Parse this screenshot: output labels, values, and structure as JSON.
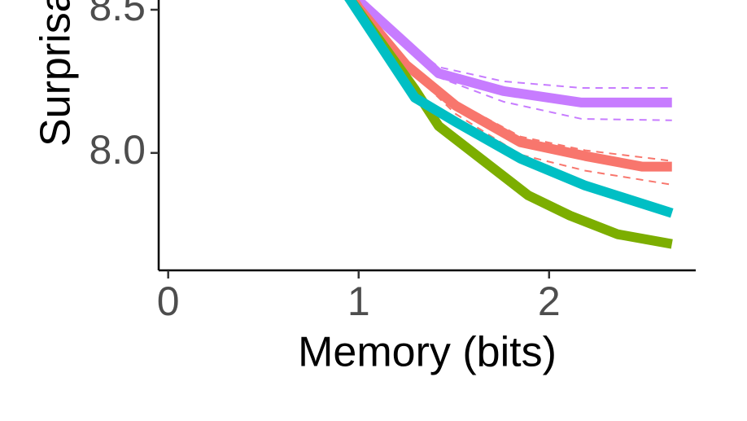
{
  "chart_data": {
    "type": "line",
    "x_label": "Memory (bits)",
    "y_label": "Surprisal",
    "xlim": [
      -0.05,
      2.77
    ],
    "xticks": [
      0,
      1,
      2
    ],
    "ylim": [
      7.59,
      8.534
    ],
    "yticks": [
      {
        "value": 8.0,
        "label": "8.0"
      },
      {
        "value": 8.5,
        "label": "8.5"
      }
    ],
    "series": [
      {
        "color": "#c77cff",
        "line_style": "solid",
        "x": [
          0.97,
          1.42,
          1.76,
          2.17,
          2.645
        ],
        "values": [
          8.55,
          8.278,
          8.216,
          8.176,
          8.176
        ]
      },
      {
        "color": "#c77cff",
        "line_style": "dashed",
        "x": [
          1.0,
          1.42,
          1.76,
          2.17,
          2.645
        ],
        "values": [
          8.52,
          8.3,
          8.25,
          8.227,
          8.227
        ]
      },
      {
        "color": "#c77cff",
        "line_style": "dashed",
        "x": [
          0.97,
          1.42,
          1.76,
          2.17,
          2.645
        ],
        "values": [
          8.55,
          8.264,
          8.179,
          8.119,
          8.114
        ]
      },
      {
        "color": "#f8766d",
        "line_style": "solid",
        "x": [
          0.96,
          1.0,
          1.25,
          1.51,
          1.85,
          2.19,
          2.49,
          2.645
        ],
        "values": [
          8.55,
          8.506,
          8.307,
          8.165,
          8.037,
          7.989,
          7.952,
          7.952
        ]
      },
      {
        "color": "#f8766d",
        "line_style": "dashed",
        "x": [
          1.0,
          1.25,
          1.51,
          1.85,
          2.19,
          2.645
        ],
        "values": [
          8.506,
          8.31,
          8.179,
          8.057,
          8.009,
          7.972
        ]
      },
      {
        "color": "#f8766d",
        "line_style": "dashed",
        "x": [
          1.0,
          1.25,
          1.51,
          1.85,
          2.19,
          2.645
        ],
        "values": [
          8.506,
          8.3,
          8.136,
          7.994,
          7.938,
          7.889
        ]
      },
      {
        "color": "#7cae00",
        "line_style": "solid",
        "x": [
          0.94,
          1.295,
          1.42,
          1.89,
          2.11,
          2.36,
          2.645
        ],
        "values": [
          8.55,
          8.222,
          8.094,
          7.852,
          7.781,
          7.716,
          7.682
        ]
      },
      {
        "color": "#00bfc4",
        "line_style": "solid",
        "x": [
          0.94,
          1.295,
          1.51,
          1.85,
          2.19,
          2.645
        ],
        "values": [
          8.55,
          8.193,
          8.108,
          7.98,
          7.886,
          7.79
        ]
      }
    ]
  }
}
